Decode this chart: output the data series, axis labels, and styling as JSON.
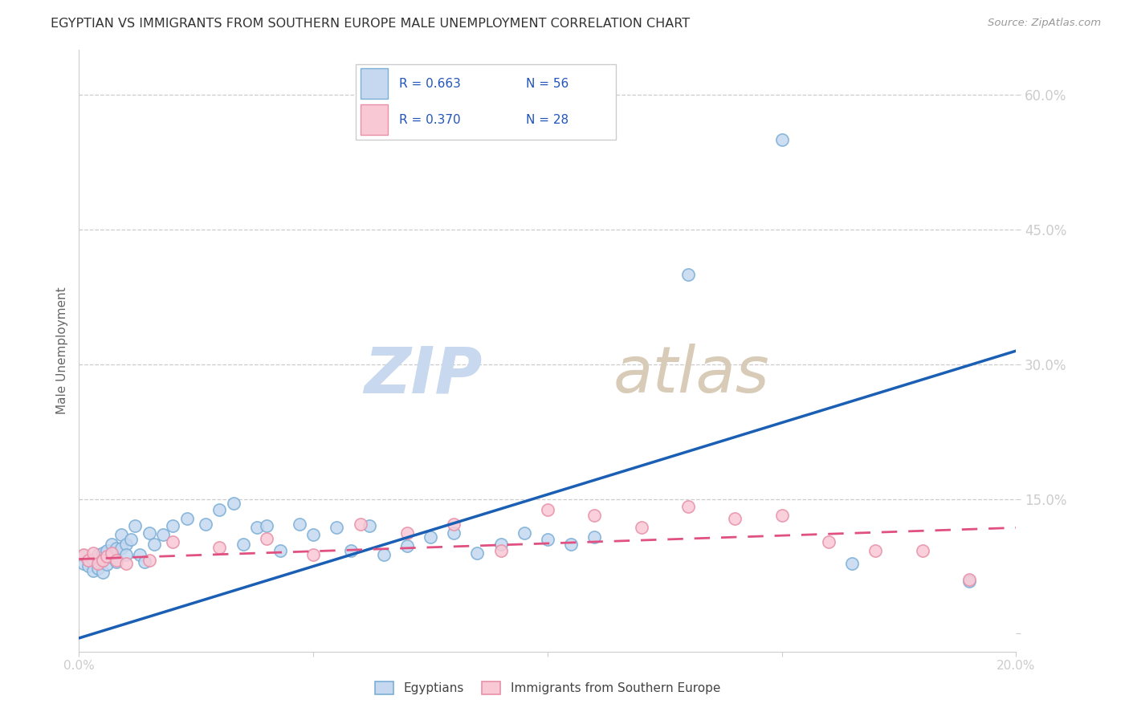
{
  "title": "EGYPTIAN VS IMMIGRANTS FROM SOUTHERN EUROPE MALE UNEMPLOYMENT CORRELATION CHART",
  "source": "Source: ZipAtlas.com",
  "ylabel": "Male Unemployment",
  "xmin": 0.0,
  "xmax": 0.2,
  "ymin": -0.02,
  "ymax": 0.65,
  "ytick_vals": [
    0.0,
    0.15,
    0.3,
    0.45,
    0.6
  ],
  "ytick_labels": [
    "",
    "15.0%",
    "30.0%",
    "45.0%",
    "60.0%"
  ],
  "xtick_vals": [
    0.0,
    0.05,
    0.1,
    0.15,
    0.2
  ],
  "xtick_labels": [
    "0.0%",
    "",
    "",
    "",
    "20.0%"
  ],
  "egyptian_color_fill": "#c5d8f0",
  "egyptian_color_edge": "#7aaed6",
  "southern_color_fill": "#f9c8d5",
  "southern_color_edge": "#e890a8",
  "egyptian_line_color": "#1a5fb4",
  "southern_line_color": "#e05080",
  "legend_label1": "Egyptians",
  "legend_label2": "Immigrants from Southern Europe",
  "watermark_zip_color": "#c8d8ee",
  "watermark_atlas_color": "#d8ccb8",
  "egyptian_scatter_x": [
    0.001,
    0.001,
    0.002,
    0.002,
    0.003,
    0.003,
    0.004,
    0.004,
    0.005,
    0.005,
    0.005,
    0.006,
    0.006,
    0.007,
    0.007,
    0.008,
    0.008,
    0.009,
    0.009,
    0.01,
    0.01,
    0.011,
    0.012,
    0.013,
    0.014,
    0.015,
    0.016,
    0.018,
    0.02,
    0.023,
    0.027,
    0.03,
    0.033,
    0.035,
    0.038,
    0.04,
    0.043,
    0.047,
    0.05,
    0.055,
    0.058,
    0.062,
    0.065,
    0.07,
    0.075,
    0.08,
    0.085,
    0.09,
    0.095,
    0.1,
    0.105,
    0.11,
    0.13,
    0.15,
    0.165,
    0.19
  ],
  "egyptian_scatter_y": [
    0.087,
    0.078,
    0.082,
    0.075,
    0.083,
    0.07,
    0.088,
    0.073,
    0.09,
    0.082,
    0.068,
    0.092,
    0.077,
    0.1,
    0.085,
    0.095,
    0.08,
    0.11,
    0.095,
    0.1,
    0.088,
    0.105,
    0.12,
    0.088,
    0.08,
    0.112,
    0.1,
    0.11,
    0.12,
    0.128,
    0.122,
    0.138,
    0.145,
    0.1,
    0.118,
    0.12,
    0.092,
    0.122,
    0.11,
    0.118,
    0.092,
    0.12,
    0.088,
    0.098,
    0.108,
    0.112,
    0.09,
    0.1,
    0.112,
    0.105,
    0.1,
    0.108,
    0.4,
    0.55,
    0.078,
    0.058
  ],
  "southern_scatter_x": [
    0.001,
    0.002,
    0.003,
    0.004,
    0.005,
    0.006,
    0.007,
    0.008,
    0.01,
    0.015,
    0.02,
    0.03,
    0.04,
    0.05,
    0.06,
    0.07,
    0.08,
    0.09,
    0.1,
    0.11,
    0.12,
    0.13,
    0.14,
    0.15,
    0.16,
    0.17,
    0.18,
    0.19
  ],
  "southern_scatter_y": [
    0.088,
    0.082,
    0.09,
    0.078,
    0.082,
    0.086,
    0.09,
    0.082,
    0.078,
    0.082,
    0.102,
    0.096,
    0.106,
    0.088,
    0.122,
    0.112,
    0.122,
    0.092,
    0.138,
    0.132,
    0.118,
    0.142,
    0.128,
    0.132,
    0.102,
    0.092,
    0.092,
    0.06
  ],
  "egyptian_line_x": [
    0.0,
    0.2
  ],
  "egyptian_line_y": [
    -0.005,
    0.315
  ],
  "southern_line_x": [
    0.0,
    0.2
  ],
  "southern_line_y": [
    0.083,
    0.118
  ]
}
